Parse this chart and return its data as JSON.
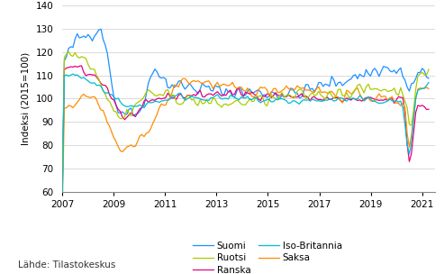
{
  "title": "",
  "ylabel": "Indeksi (2015=100)",
  "source": "Lähde: Tilastokeskus",
  "xlim": [
    2007.0,
    2021.5
  ],
  "ylim": [
    60,
    140
  ],
  "yticks": [
    60,
    70,
    80,
    90,
    100,
    110,
    120,
    130,
    140
  ],
  "xticks": [
    2007,
    2009,
    2011,
    2013,
    2015,
    2017,
    2019,
    2021
  ],
  "colors": {
    "Suomi": "#1e90ff",
    "Ranska": "#e6007e",
    "Saksa": "#ff8c00",
    "Ruotsi": "#aacc00",
    "Iso-Britannia": "#00bcd4"
  },
  "background_color": "#ffffff",
  "grid_color": "#cccccc",
  "linewidth": 0.9,
  "figsize": [
    4.93,
    3.04
  ],
  "dpi": 100
}
